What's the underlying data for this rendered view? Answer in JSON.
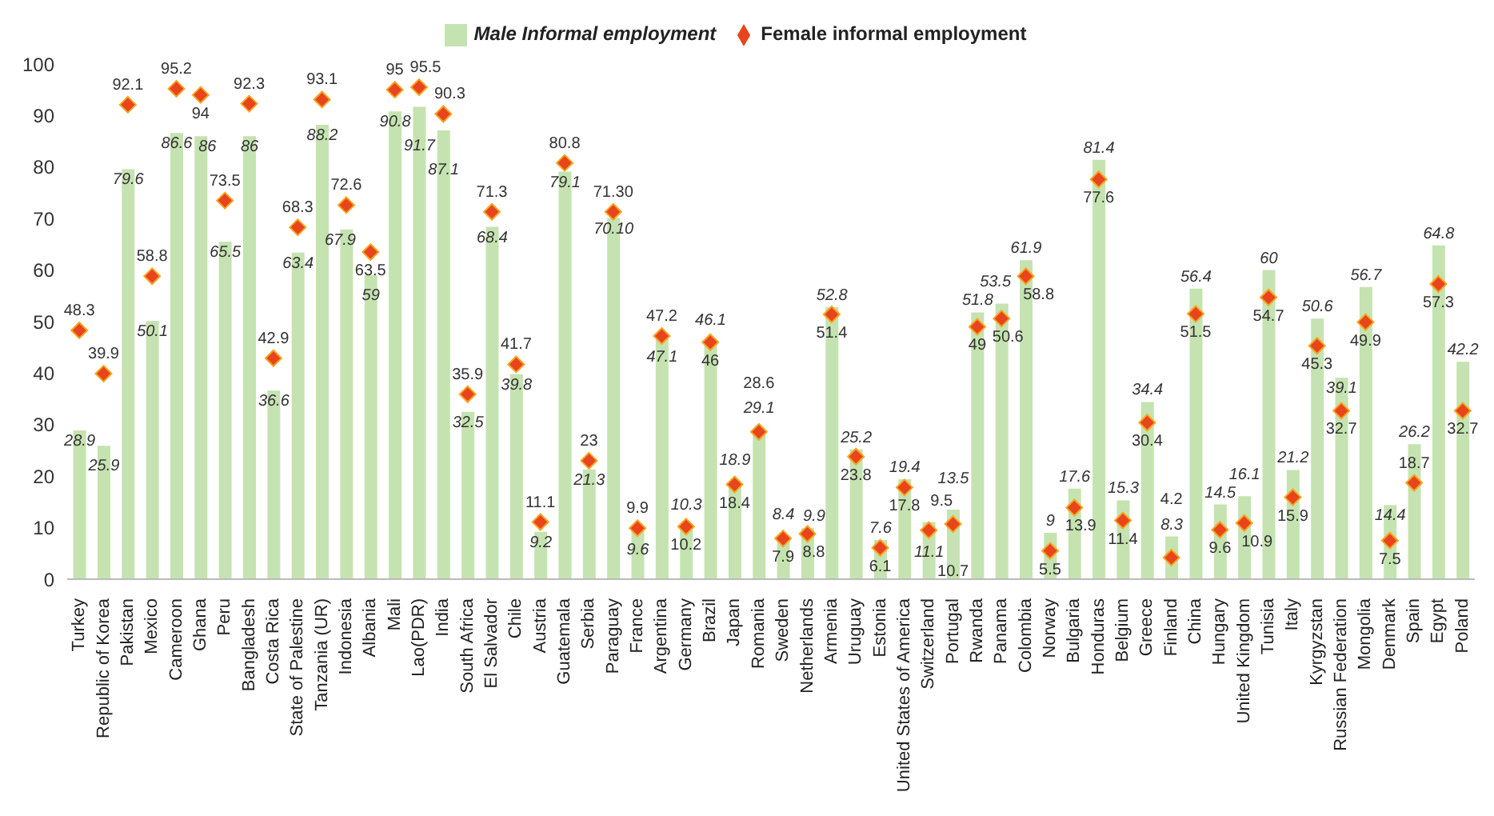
{
  "chart_data": {
    "type": "bar",
    "categories": [
      "Turkey",
      "Republic of Korea",
      "Pakistan",
      "Mexico",
      "Cameroon",
      "Ghana",
      "Peru",
      "Bangladesh",
      "Costa Rica",
      "State of Palestine",
      "Tanzania (UR)",
      "Indonesia",
      "Albania",
      "Mali",
      "Lao(PDR)",
      "India",
      "South Africa",
      "El Salvador",
      "Chile",
      "Austria",
      "Guatemala",
      "Serbia",
      "Paraguay",
      "France",
      "Argentina",
      "Germany",
      "Brazil",
      "Japan",
      "Romania",
      "Sweden",
      "Netherlands",
      "Armenia",
      "Uruguay",
      "Estonia",
      "United States of America",
      "Switzerland",
      "Portugal",
      "Rwanda",
      "Panama",
      "Colombia",
      "Norway",
      "Bulgaria",
      "Honduras",
      "Belgium",
      "Greece",
      "Finland",
      "China",
      "Hungary",
      "United Kingdom",
      "Tunisia",
      "Italy",
      "Kyrgyzstan",
      "Russian Federation",
      "Mongolia",
      "Denmark",
      "Spain",
      "Egypt",
      "Poland"
    ],
    "series": [
      {
        "name": "Male Informal employment",
        "type": "bar",
        "color": "#c5e3b0",
        "values": [
          28.9,
          25.9,
          79.6,
          50.1,
          86.6,
          86,
          65.5,
          86,
          36.6,
          63.4,
          88.2,
          67.9,
          59,
          90.8,
          91.7,
          87.1,
          32.5,
          68.4,
          39.8,
          9.2,
          79.1,
          21.3,
          70.1,
          9.6,
          47.1,
          10.3,
          46.1,
          18.9,
          29.1,
          8.4,
          9.9,
          52.8,
          25.2,
          7.6,
          19.4,
          11.1,
          13.5,
          51.8,
          53.5,
          61.9,
          9,
          17.6,
          81.4,
          15.3,
          34.4,
          8.3,
          56.4,
          14.5,
          16.1,
          60,
          21.2,
          50.6,
          39.1,
          56.7,
          14.4,
          26.2,
          64.8,
          42.2
        ],
        "value_labels": [
          "28.9",
          "25.9",
          "79.6",
          "50.1",
          "86.6",
          "86",
          "65.5",
          "86",
          "36.6",
          "63.4",
          "88.2",
          "67.9",
          "59",
          "90.8",
          "91.7",
          "87.1",
          "32.5",
          "68.4",
          "39.8",
          "9.2",
          "79.1",
          "21.3",
          "70.10",
          "9.6",
          "47.1",
          "10.3",
          "46.1",
          "18.9",
          "29.1",
          "8.4",
          "9.9",
          "52.8",
          "25.2",
          "7.6",
          "19.4",
          "11.1",
          "13.5",
          "51.8",
          "53.5",
          "61.9",
          "9",
          "17.6",
          "81.4",
          "15.3",
          "34.4",
          "8.3",
          "56.4",
          "14.5",
          "16.1",
          "60",
          "21.2",
          "50.6",
          "39.1",
          "56.7",
          "14.4",
          "26.2",
          "64.8",
          "42.2"
        ]
      },
      {
        "name": "Female informal employment",
        "type": "scatter",
        "color": "#e8451c",
        "values": [
          48.3,
          39.9,
          92.1,
          58.8,
          95.2,
          94,
          73.5,
          92.3,
          42.9,
          68.3,
          93.1,
          72.6,
          63.5,
          95,
          95.5,
          90.3,
          35.9,
          71.3,
          41.7,
          11.1,
          80.8,
          23,
          71.3,
          9.9,
          47.2,
          10.2,
          46,
          18.4,
          28.6,
          7.9,
          8.8,
          51.4,
          23.8,
          6.1,
          17.8,
          9.5,
          10.7,
          49,
          50.6,
          58.8,
          5.5,
          13.9,
          77.6,
          11.4,
          30.4,
          4.2,
          51.5,
          9.6,
          10.9,
          54.7,
          15.9,
          45.3,
          32.7,
          49.9,
          7.5,
          18.7,
          57.3,
          32.7
        ],
        "value_labels": [
          "48.3",
          "39.9",
          "92.1",
          "58.8",
          "95.2",
          "94",
          "73.5",
          "92.3",
          "42.9",
          "68.3",
          "93.1",
          "72.6",
          "63.5",
          "95",
          "95.5",
          "90.3",
          "35.9",
          "71.3",
          "41.7",
          "11.1",
          "80.8",
          "23",
          "71.30",
          "9.9",
          "47.2",
          "10.2",
          "46",
          "18.4",
          "28.6",
          "7.9",
          "8.8",
          "51.4",
          "23.8",
          "6.1",
          "17.8",
          "9.5",
          "10.7",
          "49",
          "50.6",
          "58.8",
          "5.5",
          "13.9",
          "77.6",
          "11.4",
          "30.4",
          "4.2",
          "51.5",
          "9.6",
          "10.9",
          "54.7",
          "15.9",
          "45.3",
          "32.7",
          "49.9",
          "7.5",
          "18.7",
          "57.3",
          "32.7"
        ]
      }
    ],
    "ylim": [
      0,
      100
    ],
    "yticks": [
      0,
      10,
      20,
      30,
      40,
      50,
      60,
      70,
      80,
      90,
      100
    ],
    "legend": "top",
    "marker": "diamond"
  }
}
